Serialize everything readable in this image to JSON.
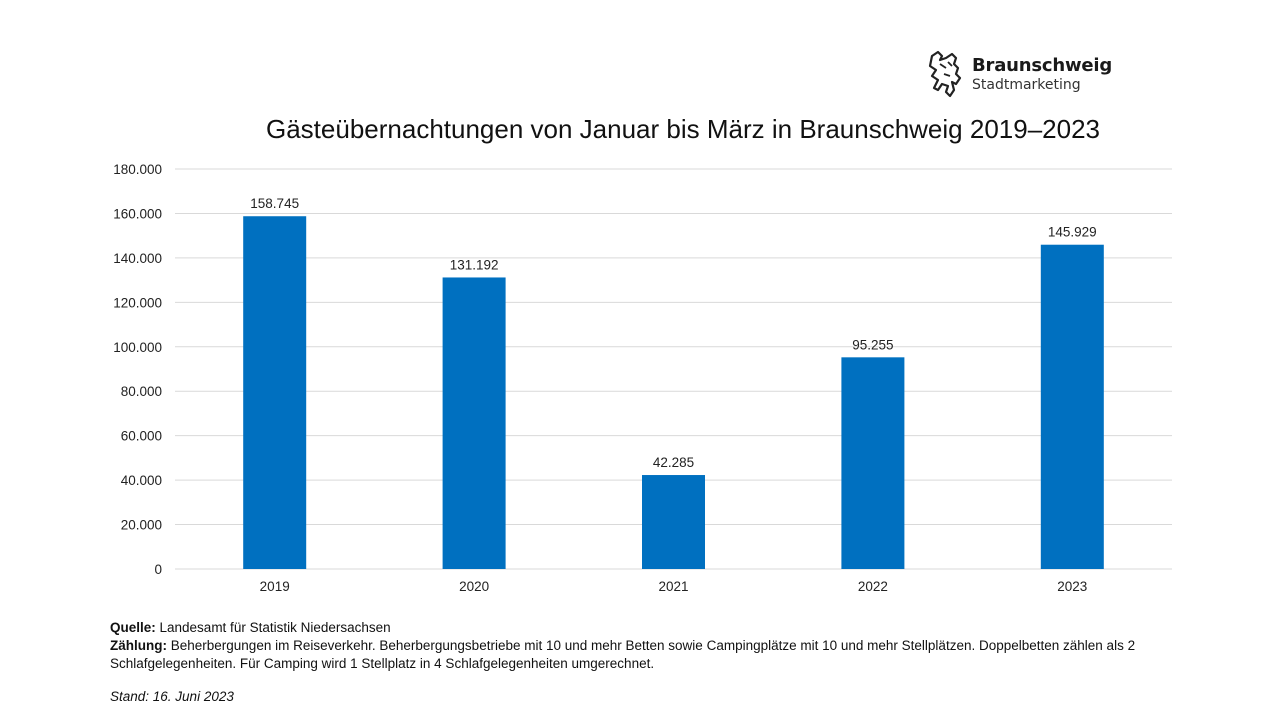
{
  "logo": {
    "title": "Braunschweig",
    "subtitle": "Stadtmarketing",
    "icon": "lion-icon"
  },
  "chart_data": {
    "type": "bar",
    "title": "Gästeübernachtungen von Januar bis März in Braunschweig 2019–2023",
    "xlabel": "",
    "ylabel": "",
    "categories": [
      "2019",
      "2020",
      "2021",
      "2022",
      "2023"
    ],
    "values": [
      158745,
      131192,
      42285,
      95255,
      145929
    ],
    "data_labels": [
      "158.745",
      "131.192",
      "42.285",
      "95.255",
      "145.929"
    ],
    "ylim": [
      0,
      180000
    ],
    "yticks": [
      0,
      20000,
      40000,
      60000,
      80000,
      100000,
      120000,
      140000,
      160000,
      180000
    ],
    "ytick_labels": [
      "0",
      "20.000",
      "40.000",
      "60.000",
      "80.000",
      "100.000",
      "120.000",
      "140.000",
      "160.000",
      "180.000"
    ],
    "grid": true,
    "legend": "none",
    "bar_color": "#0070C0"
  },
  "notes": {
    "source_label": "Quelle:",
    "source_text": " Landesamt für Statistik Niedersachsen",
    "counting_label": "Zählung:",
    "counting_text": " Beherbergungen im Reiseverkehr. Beherbergungsbetriebe mit 10 und mehr Betten sowie Campingplätze mit 10 und mehr Stellplätzen. Doppelbetten zählen als 2 Schlafgelegenheiten. Für Camping wird 1 Stellplatz in 4 Schlafgelegenheiten umgerechnet.",
    "stand": "Stand: 16. Juni 2023"
  }
}
